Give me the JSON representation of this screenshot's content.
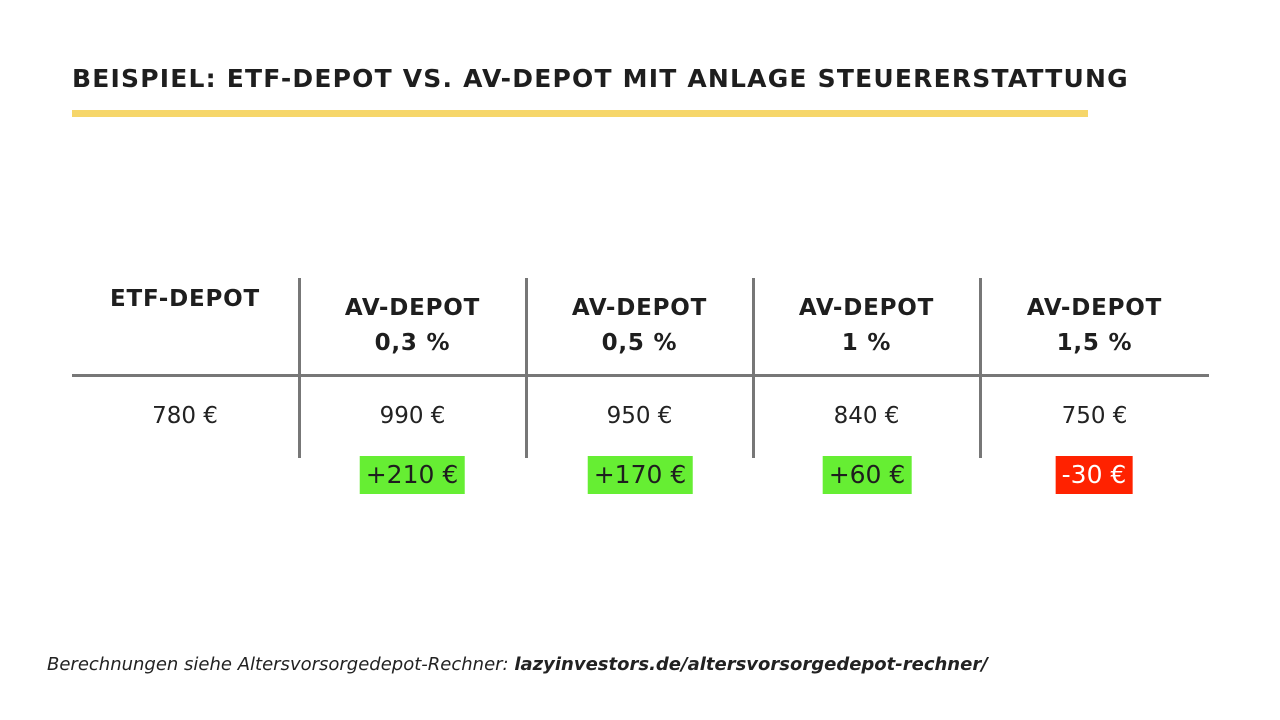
{
  "title": "BEISPIEL: ETF-DEPOT VS. AV-DEPOT MIT ANLAGE STEUERERSTATTUNG",
  "colors": {
    "accent_underline": "#f6d66a",
    "positive": "#66ee33",
    "negative": "#ff2200"
  },
  "table": {
    "columns": [
      {
        "line1": "ETF-DEPOT",
        "line2": "",
        "value": "780 €",
        "diff": ""
      },
      {
        "line1": "AV-DEPOT",
        "line2": "0,3 %",
        "value": "990 €",
        "diff": "+210 €"
      },
      {
        "line1": "AV-DEPOT",
        "line2": "0,5 %",
        "value": "950 €",
        "diff": "+170 €"
      },
      {
        "line1": "AV-DEPOT",
        "line2": "1 %",
        "value": "840 €",
        "diff": "+60 €"
      },
      {
        "line1": "AV-DEPOT",
        "line2": "1,5 %",
        "value": "750 €",
        "diff": "-30 €"
      }
    ]
  },
  "footer": {
    "prefix": "Berechnungen siehe Altersvorsorgedepot-Rechner: ",
    "link": "lazyinvestors.de/altersvorsorgedepot-rechner/"
  }
}
